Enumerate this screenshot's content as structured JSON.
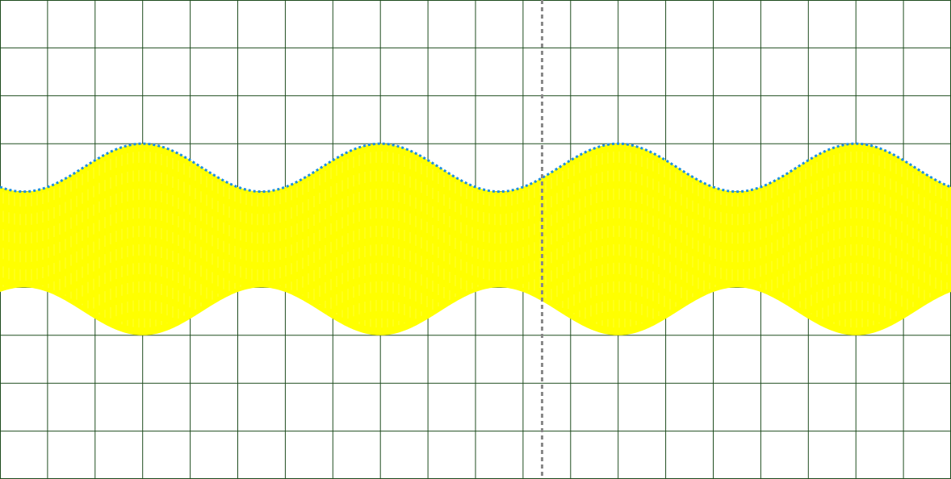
{
  "chart_data": {
    "type": "line",
    "title": "",
    "xlabel": "",
    "ylabel": "",
    "xlim": [
      0,
      20
    ],
    "ylim": [
      -5,
      5
    ],
    "grid": true,
    "grid_divisions": {
      "x": 20,
      "y": 10
    },
    "cursor_x": 11.4,
    "colors": {
      "background": "#ffffff",
      "grid": "#1f4d1f",
      "carrier": "#ffff00",
      "envelope": "#1e90e0",
      "cursor": "#888888"
    },
    "series": [
      {
        "kind": "am-carrier",
        "center": 0,
        "envelope_mean": 1.5,
        "envelope_amplitude": 0.5,
        "modulation_period": 5.0,
        "peak_at": 3.0
      },
      {
        "kind": "upper-envelope-dotted",
        "center": 0,
        "envelope_mean": 1.5,
        "envelope_amplitude": 0.5,
        "modulation_period": 5.0,
        "peak_at": 3.0
      }
    ]
  }
}
